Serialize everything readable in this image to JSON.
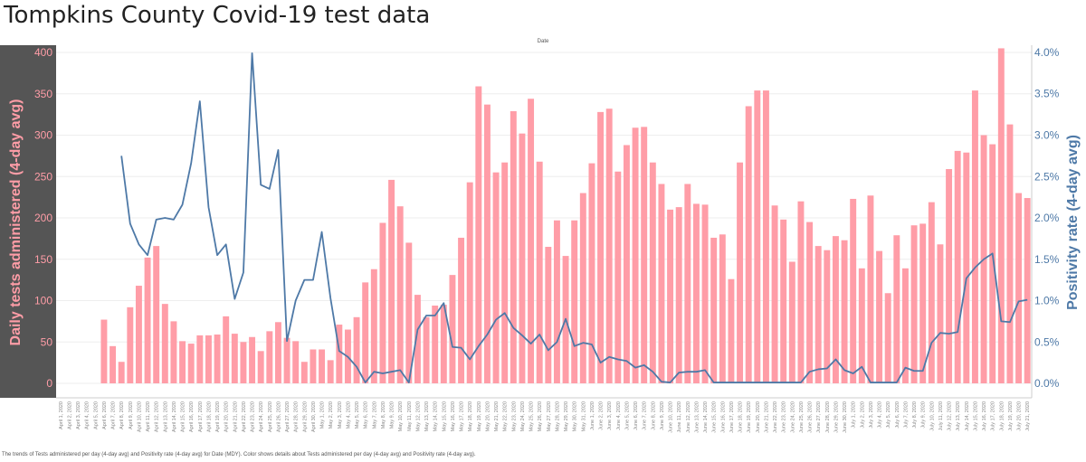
{
  "title": "Tompkins County Covid-19 test data",
  "footer": "The trends of Tests administered per day (4-day avg) and Positivity rate (4-day avg) for Date (MDY).  Color shows details about Tests administered per day (4-day avg) and Positivity rate (4-day avg).",
  "colors": {
    "bars": "#ff9da7",
    "line": "#4e79a7",
    "left_panel": "#555555",
    "left_axis": "#ff9da7"
  },
  "chart_data": {
    "type": "bar",
    "title": "Tompkins County Covid-19 test data",
    "xlabel": "Date",
    "ylabel": "Daily tests administered (4-day avg)",
    "y2label": "Positivity rate (4-day avg)",
    "ylim": [
      0,
      420
    ],
    "y2lim": [
      0,
      0.042
    ],
    "yticks": [
      "0",
      "50",
      "100",
      "150",
      "200",
      "250",
      "300",
      "350",
      "400"
    ],
    "y2ticks": [
      "0.0%",
      "0.5%",
      "1.0%",
      "1.5%",
      "2.0%",
      "2.5%",
      "3.0%",
      "3.5%",
      "4.0%"
    ],
    "categories": [
      "April 1, 2020",
      "April 2, 2020",
      "April 3, 2020",
      "April 4, 2020",
      "April 5, 2020",
      "April 6, 2020",
      "April 7, 2020",
      "April 8, 2020",
      "April 9, 2020",
      "April 10, 2020",
      "April 11, 2020",
      "April 12, 2020",
      "April 13, 2020",
      "April 14, 2020",
      "April 15, 2020",
      "April 16, 2020",
      "April 17, 2020",
      "April 18, 2020",
      "April 19, 2020",
      "April 20, 2020",
      "April 21, 2020",
      "April 22, 2020",
      "April 23, 2020",
      "April 24, 2020",
      "April 25, 2020",
      "April 26, 2020",
      "April 27, 2020",
      "April 28, 2020",
      "April 29, 2020",
      "April 30, 2020",
      "May 1, 2020",
      "May 2, 2020",
      "May 3, 2020",
      "May 4, 2020",
      "May 5, 2020",
      "May 6, 2020",
      "May 7, 2020",
      "May 8, 2020",
      "May 9, 2020",
      "May 10, 2020",
      "May 11, 2020",
      "May 12, 2020",
      "May 13, 2020",
      "May 14, 2020",
      "May 15, 2020",
      "May 16, 2020",
      "May 17, 2020",
      "May 18, 2020",
      "May 19, 2020",
      "May 20, 2020",
      "May 21, 2020",
      "May 22, 2020",
      "May 23, 2020",
      "May 24, 2020",
      "May 25, 2020",
      "May 26, 2020",
      "May 27, 2020",
      "May 28, 2020",
      "May 29, 2020",
      "May 30, 2020",
      "May 31, 2020",
      "June 1, 2020",
      "June 2, 2020",
      "June 3, 2020",
      "June 4, 2020",
      "June 5, 2020",
      "June 6, 2020",
      "June 7, 2020",
      "June 8, 2020",
      "June 9, 2020",
      "June 10, 2020",
      "June 11, 2020",
      "June 12, 2020",
      "June 13, 2020",
      "June 14, 2020",
      "June 15, 2020",
      "June 16, 2020",
      "June 17, 2020",
      "June 18, 2020",
      "June 19, 2020",
      "June 20, 2020",
      "June 21, 2020",
      "June 22, 2020",
      "June 23, 2020",
      "June 24, 2020",
      "June 25, 2020",
      "June 26, 2020",
      "June 27, 2020",
      "June 28, 2020",
      "June 29, 2020",
      "June 30, 2020",
      "July 1, 2020",
      "July 2, 2020",
      "July 3, 2020",
      "July 4, 2020",
      "July 5, 2020",
      "July 6, 2020",
      "July 7, 2020",
      "July 8, 2020",
      "July 9, 2020",
      "July 10, 2020",
      "July 11, 2020",
      "July 12, 2020",
      "July 13, 2020",
      "July 14, 2020",
      "July 15, 2020",
      "July 16, 2020",
      "July 17, 2020",
      "July 18, 2020",
      "July 19, 2020",
      "July 20, 2020",
      "July 21, 2020"
    ],
    "series": [
      {
        "name": "Daily tests administered (4-day avg)",
        "type": "bar",
        "axis": "left",
        "values": [
          null,
          null,
          null,
          null,
          null,
          77,
          45,
          26,
          92,
          118,
          152,
          166,
          96,
          75,
          51,
          48,
          58,
          58,
          59,
          81,
          60,
          50,
          56,
          39,
          63,
          74,
          55,
          51,
          26,
          41,
          41,
          28,
          71,
          65,
          80,
          122,
          138,
          194,
          246,
          214,
          170,
          107,
          80,
          94,
          95,
          131,
          176,
          243,
          359,
          337,
          255,
          267,
          329,
          302,
          344,
          268,
          165,
          197,
          154,
          197,
          230,
          266,
          328,
          332,
          256,
          288,
          309,
          310,
          267,
          241,
          210,
          213,
          241,
          217,
          216,
          176,
          180,
          126,
          267,
          335,
          354,
          354,
          215,
          198,
          147,
          220,
          195,
          166,
          161,
          178,
          173,
          223,
          139,
          227,
          160,
          109,
          179,
          139,
          191,
          193,
          219,
          168,
          259,
          281,
          279,
          354,
          300,
          289,
          405,
          313,
          230,
          224
        ]
      },
      {
        "name": "Positivity rate (4-day avg)",
        "type": "line",
        "axis": "right",
        "values": [
          null,
          null,
          null,
          null,
          null,
          null,
          null,
          0.0275,
          0.0193,
          0.0168,
          0.0155,
          0.0198,
          0.02,
          0.0198,
          0.0216,
          0.0266,
          0.0341,
          0.0213,
          0.0155,
          0.0168,
          0.0102,
          0.0134,
          0.0399,
          0.024,
          0.0235,
          0.0282,
          0.0051,
          0.01,
          0.0125,
          0.0125,
          0.0183,
          0.0103,
          0.0039,
          0.0032,
          0.002,
          0.0001,
          0.0014,
          0.0012,
          0.0014,
          0.0016,
          0.0001,
          0.0065,
          0.0082,
          0.0082,
          0.0097,
          0.0044,
          0.0043,
          0.0029,
          0.0045,
          0.0059,
          0.0077,
          0.0085,
          0.0067,
          0.0058,
          0.0048,
          0.0059,
          0.004,
          0.005,
          0.0078,
          0.0045,
          0.0049,
          0.0047,
          0.0025,
          0.0032,
          0.0029,
          0.0027,
          0.0019,
          0.0022,
          0.0014,
          0.0002,
          0.0001,
          0.0013,
          0.0014,
          0.0014,
          0.0016,
          0.0001,
          0.0001,
          0.0001,
          0.0001,
          0.0001,
          0.0001,
          0.0001,
          0.0001,
          0.0001,
          0.0001,
          0.0001,
          0.0014,
          0.0017,
          0.0018,
          0.0029,
          0.0016,
          0.0012,
          0.002,
          0.0001,
          0.0001,
          0.0001,
          0.0001,
          0.0019,
          0.0015,
          0.0015,
          0.0049,
          0.0061,
          0.006,
          0.0062,
          0.0127,
          0.014,
          0.015,
          0.0157,
          0.0075,
          0.0074,
          0.0099,
          0.0101
        ]
      }
    ]
  }
}
